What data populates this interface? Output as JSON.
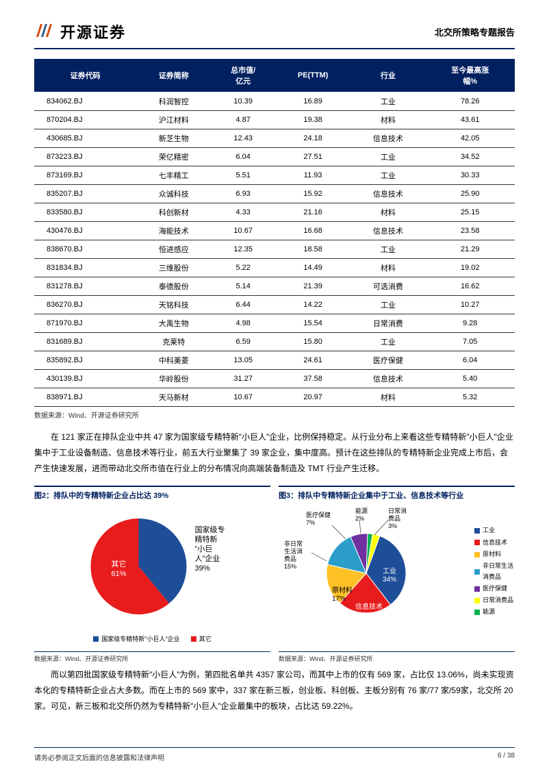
{
  "header": {
    "company_logo_text": "开源证券",
    "report_type": "北交所策略专题报告"
  },
  "table": {
    "columns": [
      "证券代码",
      "证券简称",
      "总市值/\n亿元",
      "PE(TTM)",
      "行业",
      "至今最高涨\n幅%"
    ],
    "rows": [
      [
        "834062.BJ",
        "科润智控",
        "10.39",
        "16.89",
        "工业",
        "78.26"
      ],
      [
        "870204.BJ",
        "沪江材料",
        "4.87",
        "19.38",
        "材料",
        "43.61"
      ],
      [
        "430685.BJ",
        "新芝生物",
        "12.43",
        "24.18",
        "信息技术",
        "42.05"
      ],
      [
        "873223.BJ",
        "荣亿精密",
        "6.04",
        "27.51",
        "工业",
        "34.52"
      ],
      [
        "873169.BJ",
        "七丰精工",
        "5.51",
        "11.93",
        "工业",
        "30.33"
      ],
      [
        "835207.BJ",
        "众诚科技",
        "6.93",
        "15.92",
        "信息技术",
        "25.90"
      ],
      [
        "833580.BJ",
        "科创新材",
        "4.33",
        "21.16",
        "材料",
        "25.15"
      ],
      [
        "430476.BJ",
        "海能技术",
        "10.67",
        "16.68",
        "信息技术",
        "23.58"
      ],
      [
        "838670.BJ",
        "恒进感应",
        "12.35",
        "18.58",
        "工业",
        "21.29"
      ],
      [
        "831834.BJ",
        "三维股份",
        "5.22",
        "14.49",
        "材料",
        "19.02"
      ],
      [
        "831278.BJ",
        "泰德股份",
        "5.14",
        "21.39",
        "可选消费",
        "16.62"
      ],
      [
        "836270.BJ",
        "天铭科技",
        "6.44",
        "14.22",
        "工业",
        "10.27"
      ],
      [
        "871970.BJ",
        "大禹生物",
        "4.98",
        "15.54",
        "日常消费",
        "9.28"
      ],
      [
        "831689.BJ",
        "克莱特",
        "6.59",
        "15.80",
        "工业",
        "7.05"
      ],
      [
        "835892.BJ",
        "中科美菱",
        "13.05",
        "24.61",
        "医疗保健",
        "6.04"
      ],
      [
        "430139.BJ",
        "华岭股份",
        "31.27",
        "37.58",
        "信息技术",
        "5.40"
      ],
      [
        "838971.BJ",
        "天马新材",
        "10.67",
        "20.97",
        "材料",
        "5.32"
      ]
    ],
    "source": "数据来源：Wind、开源证券研究所"
  },
  "paragraph1": "在 121 家正在排队企业中共 47 家为国家级专精特新\"小巨人\"企业，比例保持稳定。从行业分布上来看这些专精特新\"小巨人\"企业集中于工业设备制造、信息技术等行业，前五大行业聚集了 39 家企业，集中度高。预计在这些排队的专精特新企业完成上市后，会产生快速发展，进而带动北交所市值在行业上的分布情况向高端装备制造及 TMT 行业产生迁移。",
  "chart2": {
    "title": "图2：排队中的专精特新企业占比达 39%",
    "type": "pie",
    "slices": [
      {
        "label": "国家级专精特新\"小巨人\"企业",
        "value": 39,
        "color": "#1f4e99",
        "label_text": "国家级专\n精特新\n\"小巨\n人\"企业\n39%"
      },
      {
        "label": "其它",
        "value": 61,
        "color": "#e81c1c",
        "label_text": "其它\n61%"
      }
    ],
    "legend": [
      {
        "label": "国家级专精特新\"小巨人\"企业",
        "color": "#1f4e99"
      },
      {
        "label": "其它",
        "color": "#e81c1c"
      }
    ],
    "source": "数据来源：Wind、开源证券研究所"
  },
  "chart3": {
    "title": "图3：排队中专精特新企业集中于工业、信息技术等行业",
    "type": "pie",
    "slices": [
      {
        "label": "工业",
        "value": 34,
        "color": "#1f4e99",
        "display": "工业\n34%"
      },
      {
        "label": "信息技术",
        "value": 22,
        "color": "#e81c1c",
        "display": "信息技术\n22%"
      },
      {
        "label": "原材料",
        "value": 17,
        "color": "#ffc125",
        "display": "原材料\n17%"
      },
      {
        "label": "非日常生活消费品",
        "value": 15,
        "color": "#2a9dc9",
        "display": "非日常\n生活消\n费品\n15%"
      },
      {
        "label": "医疗保健",
        "value": 7,
        "color": "#7030a0",
        "display": "医疗保健\n7%"
      },
      {
        "label": "能源",
        "value": 2,
        "color": "#00b050",
        "display": "能源\n2%"
      },
      {
        "label": "日常消费品",
        "value": 3,
        "color": "#ffff00",
        "display": "日常消\n费品\n3%"
      }
    ],
    "legend_items": [
      {
        "label": "工业",
        "color": "#1f4e99"
      },
      {
        "label": "信息技术",
        "color": "#e81c1c"
      },
      {
        "label": "原材料",
        "color": "#ffc125"
      },
      {
        "label": "非日常生活\n消费品",
        "color": "#2a9dc9"
      },
      {
        "label": "医疗保健",
        "color": "#7030a0"
      },
      {
        "label": "日常消费品",
        "color": "#ffff00"
      },
      {
        "label": "能源",
        "color": "#00b050"
      }
    ],
    "source": "数据来源：Wind、开源证券研究所"
  },
  "paragraph2": "而以第四批国家级专精特新\"小巨人\"为例，第四批名单共 4357 家公司，而其中上市的仅有 569 家，占比仅 13.06%，尚未实现资本化的专精特新企业占大多数。而在上市的 569 家中，337 家在新三板，创业板、科创板、主板分别有 76 家/77 家/59家，北交所 20 家。可见，新三板和北交所仍然为专精特新\"小巨人\"企业最集中的板块，占比达 59.22%。",
  "footer": {
    "disclaimer": "请务必参阅正文后面的信息披露和法律声明",
    "page": "6 / 38"
  }
}
